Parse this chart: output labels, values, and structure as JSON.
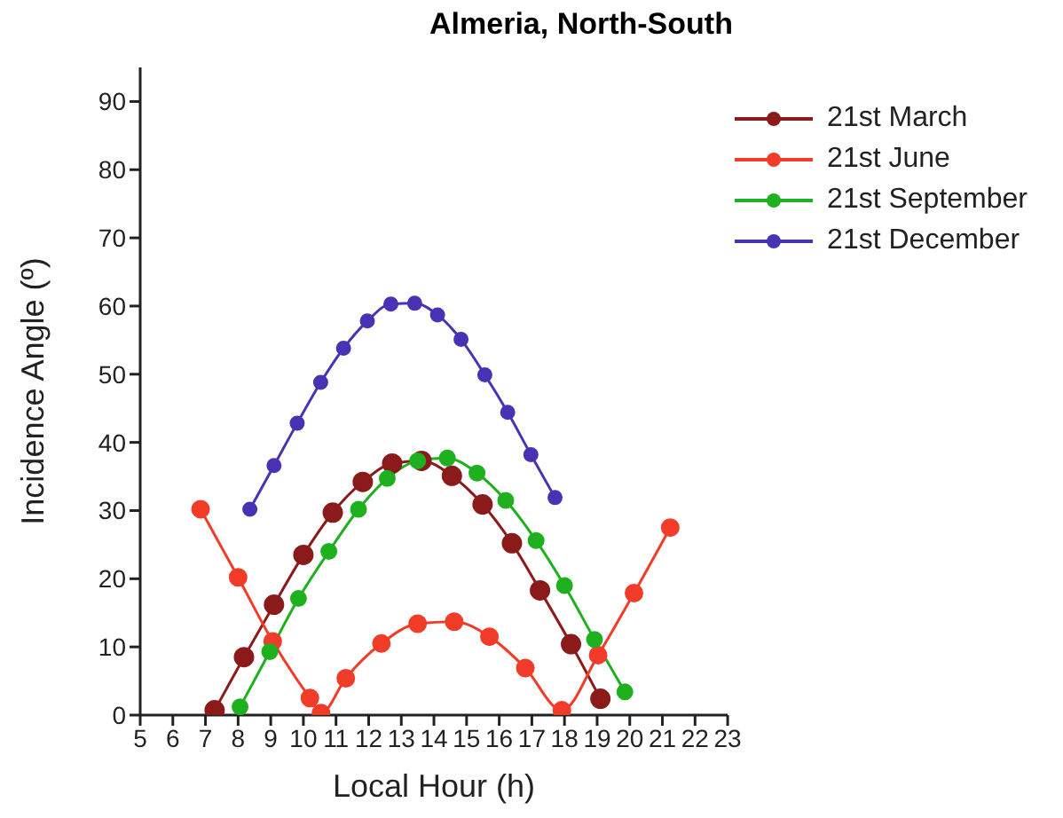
{
  "chart_data": {
    "type": "line",
    "title": "Almeria, North-South",
    "xlabel": "Local Hour (h)",
    "ylabel": "Incidence Angle (º)",
    "xlim": [
      5,
      23
    ],
    "xticks": [
      5,
      6,
      7,
      8,
      9,
      10,
      11,
      12,
      13,
      14,
      15,
      16,
      17,
      18,
      19,
      20,
      21,
      22,
      23
    ],
    "ylim": [
      0,
      95
    ],
    "yticks": [
      0,
      10,
      20,
      30,
      40,
      50,
      60,
      70,
      80,
      90
    ],
    "grid": false,
    "legend": "top right",
    "marker": "circle",
    "line_style": "solid",
    "series": [
      {
        "name": "21st March",
        "color": "#8b1a1a",
        "x": [
          7.28,
          8.18,
          9.1,
          10.0,
          10.9,
          11.82,
          12.72,
          13.62,
          14.55,
          15.49,
          16.39,
          17.25,
          18.2,
          19.1
        ],
        "values": [
          0.7,
          8.5,
          16.2,
          23.5,
          29.7,
          34.2,
          36.9,
          37.3,
          35.1,
          30.9,
          25.2,
          18.3,
          10.4,
          2.4
        ]
      },
      {
        "name": "21st June",
        "color": "#f03c28",
        "x": [
          6.85,
          8.0,
          9.06,
          10.2,
          10.54,
          11.3,
          12.39,
          13.5,
          14.62,
          15.7,
          16.8,
          17.92,
          19.03,
          20.13,
          21.24
        ],
        "values": [
          30.2,
          20.2,
          10.8,
          2.5,
          0.3,
          5.4,
          10.5,
          13.4,
          13.7,
          11.5,
          6.9,
          0.7,
          8.8,
          17.9,
          27.5
        ]
      },
      {
        "name": "21st September",
        "color": "#1fb01f",
        "x": [
          8.06,
          8.97,
          9.85,
          10.78,
          11.69,
          12.57,
          13.5,
          14.41,
          15.32,
          16.2,
          17.13,
          18.0,
          18.92,
          19.85
        ],
        "values": [
          1.2,
          9.3,
          17.1,
          24.0,
          30.2,
          34.7,
          37.3,
          37.7,
          35.5,
          31.5,
          25.6,
          19.0,
          11.1,
          3.4
        ]
      },
      {
        "name": "21st December",
        "color": "#4a32b4",
        "x": [
          8.36,
          9.1,
          9.81,
          10.53,
          11.23,
          11.96,
          12.68,
          13.41,
          14.11,
          14.83,
          15.56,
          16.26,
          16.97,
          17.71
        ],
        "values": [
          30.2,
          36.6,
          42.8,
          48.8,
          53.8,
          57.8,
          60.3,
          60.4,
          58.7,
          55.1,
          49.9,
          44.4,
          38.2,
          31.9
        ]
      }
    ]
  }
}
